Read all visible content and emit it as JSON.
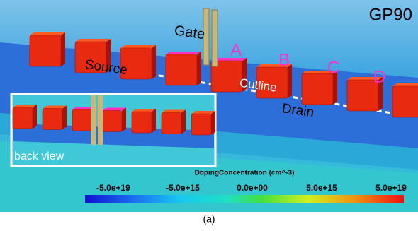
{
  "header": {
    "title": "GP90"
  },
  "labels": {
    "gate": "Gate",
    "source": "Source",
    "drain": "Drain",
    "cutline": "Cutline",
    "a": "A",
    "b": "B",
    "c": "C",
    "d": "D",
    "inset": "back view"
  },
  "colorbar": {
    "title": "DopingConcentration (cm^-3)",
    "ticks": [
      "-5.0e+19",
      "-5.0e+15",
      "0.0e+00",
      "5.0e+15",
      "5.0e+19"
    ]
  },
  "caption": "(a)"
}
